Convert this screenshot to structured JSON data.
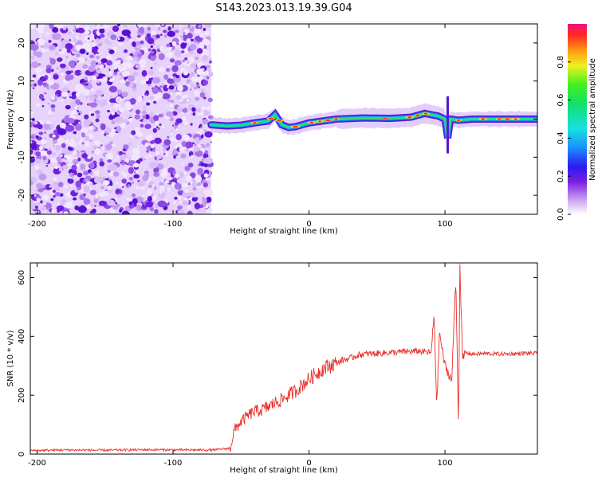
{
  "page": {
    "title": "S143.2023.013.19.39.G04"
  },
  "chart_data": [
    {
      "type": "heatmap",
      "title": "S143.2023.013.19.39.G04",
      "xlabel": "Height of straight line (km)",
      "ylabel": "Frequency (Hz)",
      "xlim": [
        -205,
        168
      ],
      "ylim": [
        -25,
        25
      ],
      "xticks": [
        -200,
        -100,
        0,
        100
      ],
      "yticks": [
        -20,
        -10,
        0,
        10,
        20
      ],
      "colorbar": {
        "label": "Normalized spectral amplitude",
        "range": [
          0.0,
          1.0
        ],
        "ticks": [
          "0.0",
          "0.2",
          "0.4",
          "0.6",
          "0.8"
        ]
      },
      "noise_region_x": [
        -205,
        -72
      ],
      "signal_track": {
        "x": [
          -72,
          -60,
          -50,
          -40,
          -30,
          -25,
          -20,
          -15,
          -10,
          0,
          20,
          40,
          60,
          75,
          85,
          95,
          100,
          102,
          104,
          110,
          120,
          140,
          168
        ],
        "freq": [
          -1.5,
          -1.8,
          -1.6,
          -1.0,
          -0.5,
          1.2,
          -1.5,
          -2.2,
          -2.0,
          -1.0,
          0.0,
          0.3,
          0.2,
          0.5,
          1.5,
          0.8,
          0.0,
          -5.0,
          0.0,
          -0.3,
          0.0,
          0.0,
          0.0
        ]
      },
      "grid": false
    },
    {
      "type": "line",
      "xlabel": "Height of straight line (km)",
      "ylabel": "SNR (10 * v/v)",
      "xlim": [
        -205,
        168
      ],
      "ylim": [
        0,
        650
      ],
      "xticks": [
        -200,
        -100,
        0,
        100
      ],
      "yticks": [
        0,
        200,
        400,
        600
      ],
      "series": [
        {
          "color": "#e8302a",
          "x": [
            -205,
            -180,
            -150,
            -120,
            -90,
            -70,
            -58,
            -55,
            -50,
            -45,
            -40,
            -35,
            -30,
            -25,
            -20,
            -15,
            -10,
            -5,
            0,
            5,
            10,
            15,
            20,
            25,
            30,
            35,
            40,
            50,
            60,
            70,
            80,
            90,
            92,
            94,
            96,
            98,
            100,
            105,
            108,
            110,
            111,
            113,
            115,
            120,
            130,
            140,
            150,
            160,
            168
          ],
          "y": [
            12,
            14,
            13,
            15,
            14,
            14,
            20,
            80,
            110,
            130,
            145,
            150,
            160,
            175,
            185,
            200,
            215,
            235,
            255,
            272,
            290,
            300,
            310,
            320,
            325,
            335,
            340,
            342,
            345,
            348,
            350,
            345,
            480,
            160,
            420,
            350,
            300,
            250,
            600,
            80,
            640,
            320,
            345,
            340,
            342,
            340,
            341,
            343,
            342
          ]
        }
      ],
      "grid": false
    }
  ]
}
